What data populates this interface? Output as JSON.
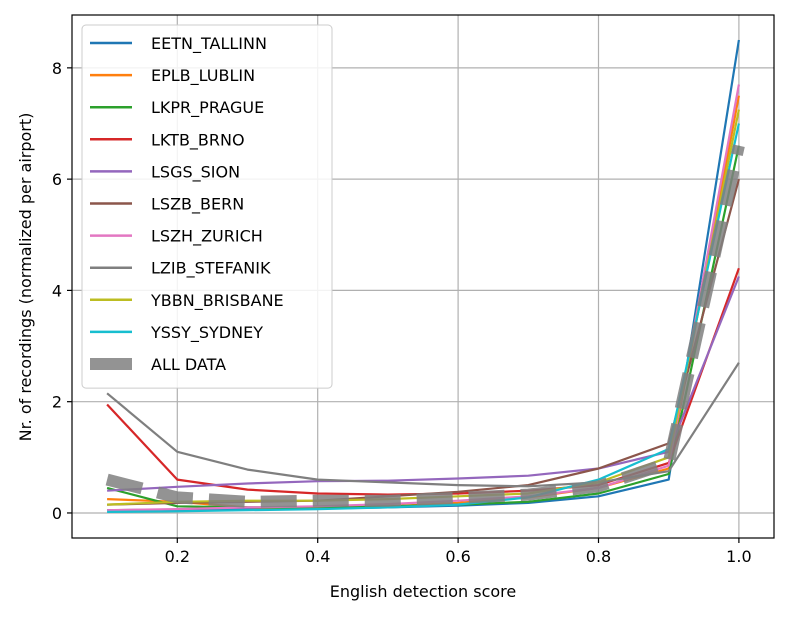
{
  "chart_data": {
    "type": "line",
    "title": "",
    "xlabel": "English detection score",
    "ylabel": "Nr. of recordings (normalized per airport)",
    "xlim": [
      0.05,
      1.05
    ],
    "ylim": [
      -0.45,
      8.95
    ],
    "xticks": [
      0.2,
      0.4,
      0.6,
      0.8,
      1.0
    ],
    "xtick_labels": [
      "0.2",
      "0.4",
      "0.6",
      "0.8",
      "1.0"
    ],
    "yticks": [
      0,
      2,
      4,
      6,
      8
    ],
    "ytick_labels": [
      "0",
      "2",
      "4",
      "6",
      "8"
    ],
    "grid": true,
    "legend_position": "top-left",
    "x": [
      0.1,
      0.2,
      0.3,
      0.4,
      0.5,
      0.6,
      0.7,
      0.8,
      0.9,
      1.0
    ],
    "series": [
      {
        "name": "EETN_TALLINN",
        "color": "#1f77b4",
        "values": [
          0.05,
          0.06,
          0.07,
          0.08,
          0.1,
          0.13,
          0.18,
          0.3,
          0.6,
          8.5
        ]
      },
      {
        "name": "EPLB_LUBLIN",
        "color": "#ff7f0e",
        "values": [
          0.25,
          0.2,
          0.1,
          0.08,
          0.12,
          0.18,
          0.28,
          0.45,
          0.8,
          7.5
        ]
      },
      {
        "name": "LKPR_PRAGUE",
        "color": "#2ca02c",
        "values": [
          0.45,
          0.12,
          0.1,
          0.1,
          0.12,
          0.15,
          0.2,
          0.35,
          0.7,
          6.6
        ]
      },
      {
        "name": "LKTB_BRNO",
        "color": "#d62728",
        "values": [
          1.95,
          0.6,
          0.42,
          0.35,
          0.33,
          0.35,
          0.4,
          0.5,
          0.9,
          4.4
        ]
      },
      {
        "name": "LSGS_SION",
        "color": "#9467bd",
        "values": [
          0.4,
          0.47,
          0.53,
          0.57,
          0.58,
          0.62,
          0.67,
          0.8,
          1.1,
          4.25
        ]
      },
      {
        "name": "LSZB_BERN",
        "color": "#8c564b",
        "values": [
          0.15,
          0.18,
          0.2,
          0.22,
          0.3,
          0.38,
          0.5,
          0.8,
          1.25,
          6.0
        ]
      },
      {
        "name": "LSZH_ZURICH",
        "color": "#e377c2",
        "values": [
          0.05,
          0.07,
          0.1,
          0.12,
          0.16,
          0.22,
          0.3,
          0.45,
          0.85,
          7.7
        ]
      },
      {
        "name": "LZIB_STEFANIK",
        "color": "#7f7f7f",
        "values": [
          2.15,
          1.1,
          0.78,
          0.6,
          0.55,
          0.5,
          0.48,
          0.55,
          0.75,
          2.7
        ]
      },
      {
        "name": "YBBN_BRISBANE",
        "color": "#bcbd22",
        "values": [
          0.15,
          0.2,
          0.22,
          0.22,
          0.25,
          0.3,
          0.35,
          0.55,
          1.0,
          7.25
        ]
      },
      {
        "name": "YSSY_SYDNEY",
        "color": "#17becf",
        "values": [
          0.02,
          0.03,
          0.05,
          0.07,
          0.1,
          0.15,
          0.28,
          0.6,
          1.15,
          7.0
        ]
      }
    ],
    "aggregate_series": {
      "name": "ALL DATA",
      "color": "#808080",
      "style": "dashed-thick",
      "values": [
        0.6,
        0.28,
        0.2,
        0.22,
        0.22,
        0.27,
        0.33,
        0.48,
        0.9,
        6.6
      ]
    }
  }
}
